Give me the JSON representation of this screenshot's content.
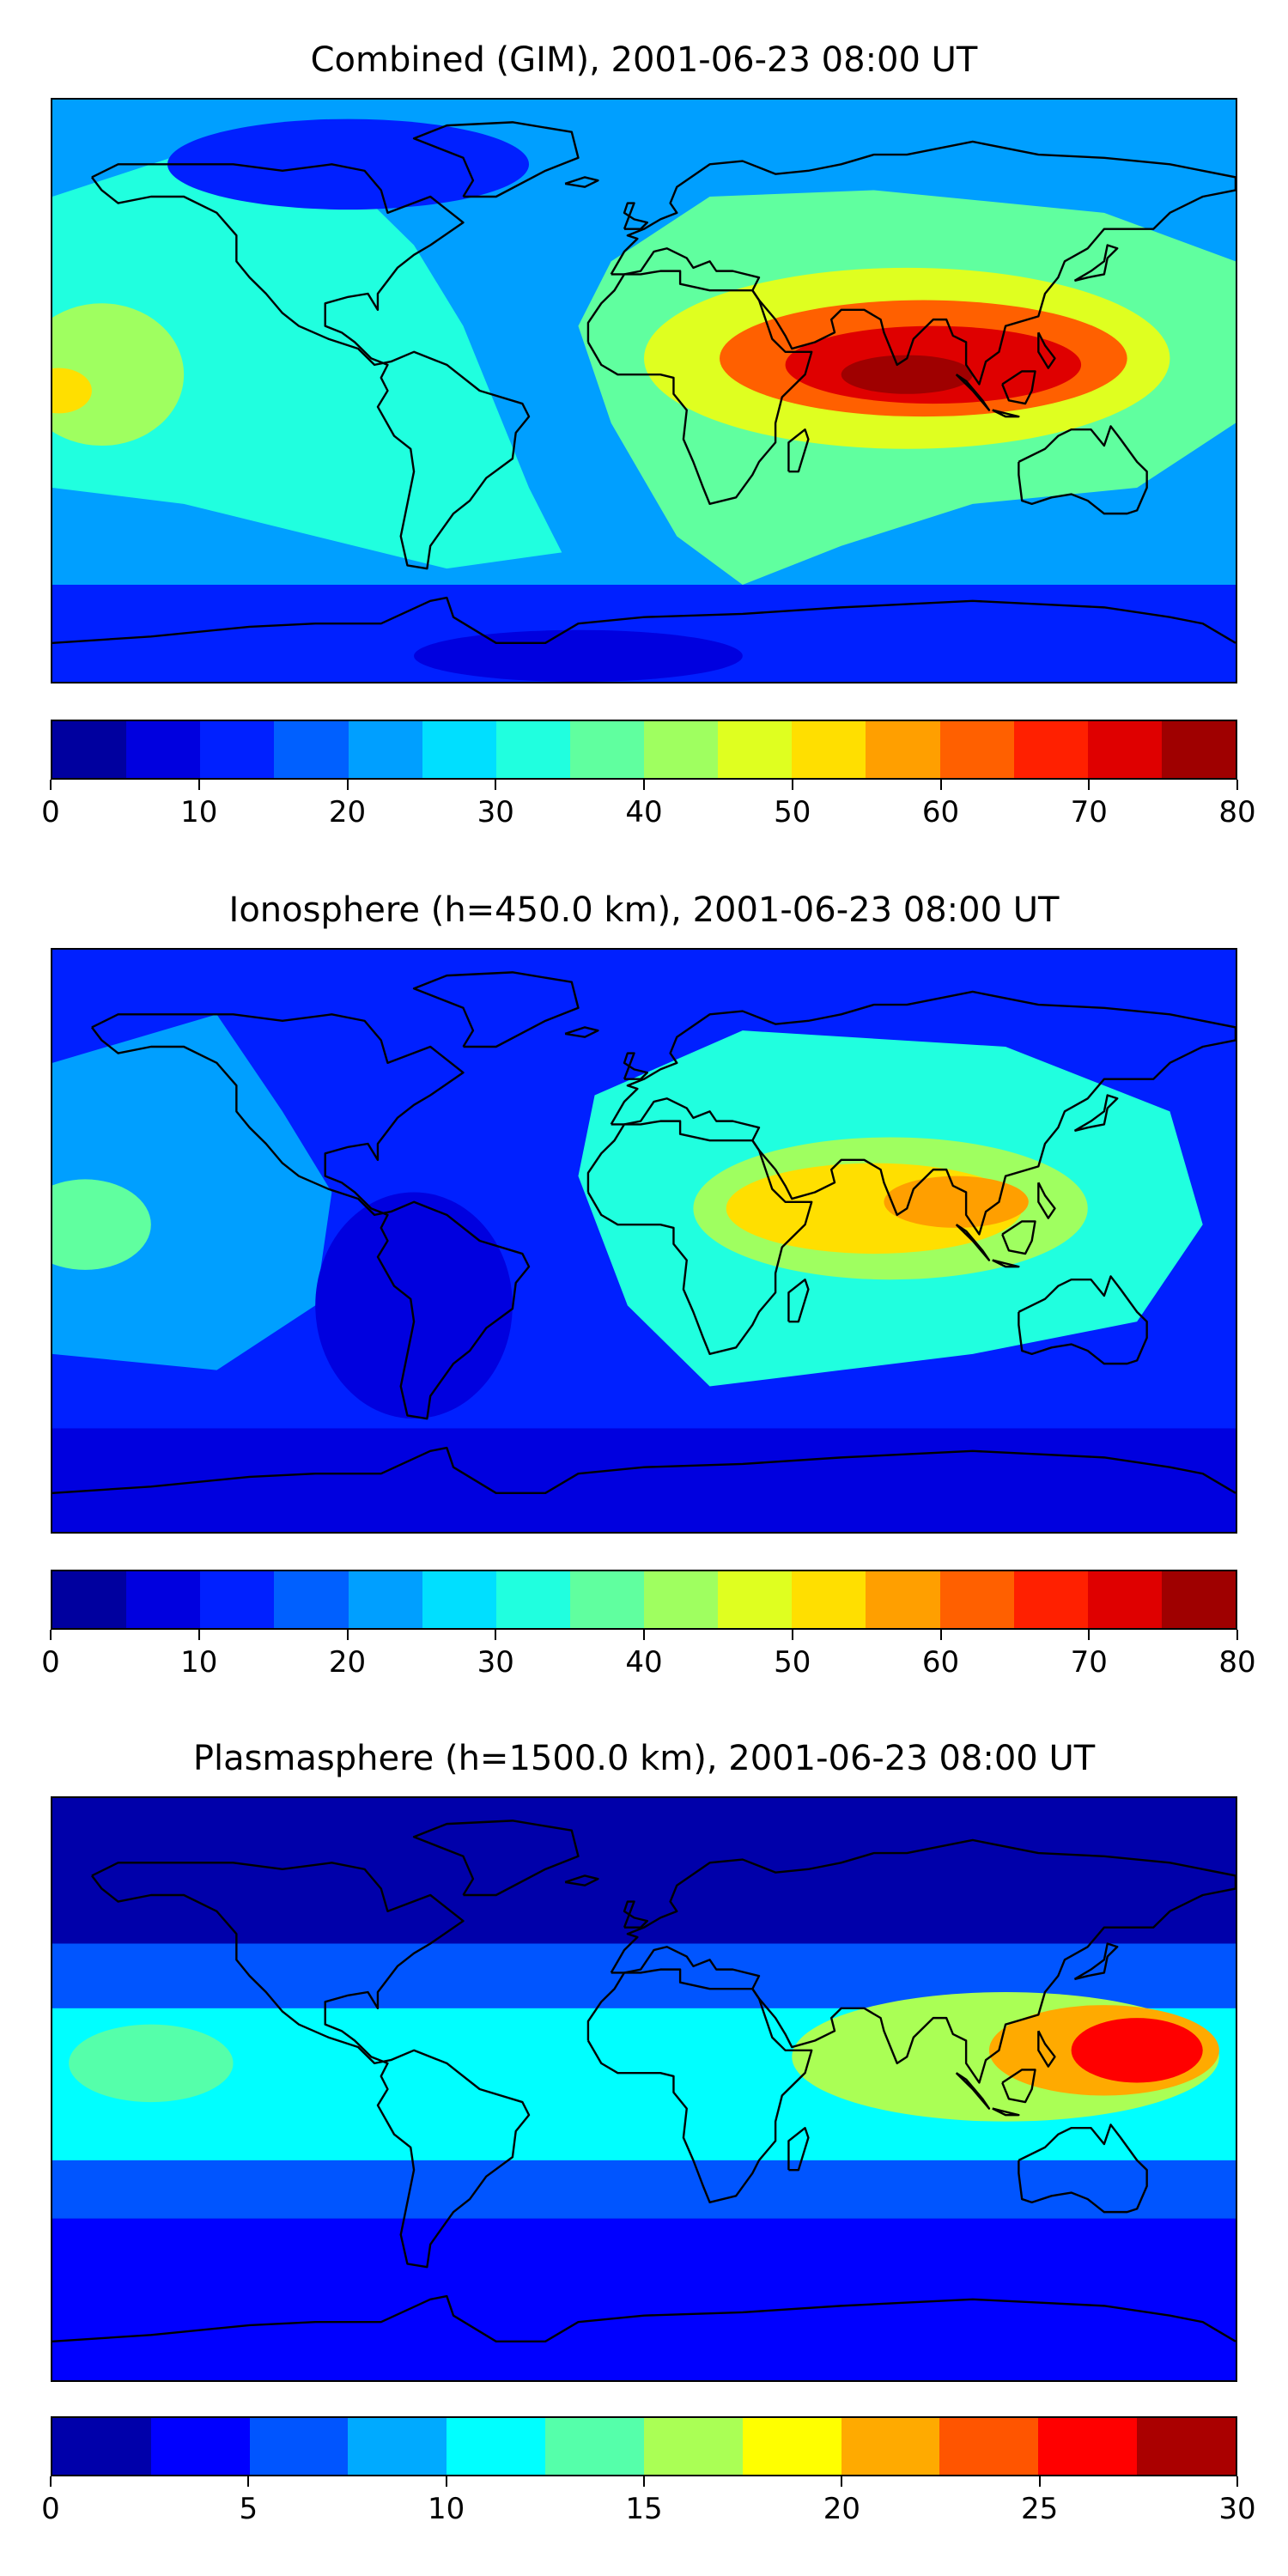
{
  "chart_data": [
    {
      "type": "heatmap",
      "title": "Combined (GIM), 2001-06-23 08:00 UT",
      "projection": "plate carree world map with coastlines",
      "xlim": [
        -180,
        180
      ],
      "ylim": [
        -90,
        90
      ],
      "colorbar": {
        "levels": [
          0,
          5,
          10,
          15,
          20,
          25,
          30,
          35,
          40,
          45,
          50,
          55,
          60,
          65,
          70,
          75,
          80
        ],
        "ticks": [
          0,
          10,
          20,
          30,
          40,
          50,
          60,
          70,
          80
        ],
        "colormap": "jet"
      },
      "regions": [
        {
          "name": "background",
          "value": 22
        },
        {
          "name": "pacific-east-arc",
          "value": 32
        },
        {
          "name": "far-west-pacific",
          "value": 40
        },
        {
          "name": "far-west-pacific-peak",
          "value": 52
        },
        {
          "name": "africa-indian-band",
          "value": 37
        },
        {
          "name": "africa-asia-crest",
          "value": 47
        },
        {
          "name": "arabia-india-maximum",
          "value": 62
        },
        {
          "name": "india-southeast-asia-core",
          "value": 72
        },
        {
          "name": "bay-of-bengal-peak",
          "value": 77
        },
        {
          "name": "north-america-low",
          "value": 14
        },
        {
          "name": "southern-ocean-low",
          "value": 12
        },
        {
          "name": "antarctic-low",
          "value": 7
        }
      ]
    },
    {
      "type": "heatmap",
      "title": "Ionosphere  (h=450.0 km), 2001-06-23 08:00 UT",
      "projection": "plate carree world map with coastlines",
      "xlim": [
        -180,
        180
      ],
      "ylim": [
        -90,
        90
      ],
      "colorbar": {
        "levels": [
          0,
          5,
          10,
          15,
          20,
          25,
          30,
          35,
          40,
          45,
          50,
          55,
          60,
          65,
          70,
          75,
          80
        ],
        "ticks": [
          0,
          10,
          20,
          30,
          40,
          50,
          60,
          70,
          80
        ],
        "colormap": "jet"
      },
      "regions": [
        {
          "name": "background",
          "value": 13
        },
        {
          "name": "pacific-mid",
          "value": 23
        },
        {
          "name": "far-west-pacific",
          "value": 37
        },
        {
          "name": "africa-eurasia-band",
          "value": 32
        },
        {
          "name": "africa-asia-crest",
          "value": 42
        },
        {
          "name": "arabia-india-maximum",
          "value": 52
        },
        {
          "name": "india-southeast-asia-core",
          "value": 57
        },
        {
          "name": "south-america-low",
          "value": 7
        },
        {
          "name": "southern-ocean-low",
          "value": 7
        }
      ]
    },
    {
      "type": "heatmap",
      "title": "Plasmasphere (h=1500.0 km), 2001-06-23 08:00 UT",
      "projection": "plate carree world map with coastlines",
      "xlim": [
        -180,
        180
      ],
      "ylim": [
        -90,
        90
      ],
      "colorbar": {
        "levels": [
          0,
          2.5,
          5,
          7.5,
          10,
          12.5,
          15,
          17.5,
          20,
          22.5,
          25,
          27.5,
          30
        ],
        "ticks": [
          0,
          5,
          10,
          15,
          20,
          25,
          30
        ],
        "colormap": "jet"
      },
      "regions": [
        {
          "name": "polar-low-north",
          "value": 1
        },
        {
          "name": "southern-low",
          "value": 4
        },
        {
          "name": "mid-latitude-band",
          "value": 7
        },
        {
          "name": "tropical-band",
          "value": 11
        },
        {
          "name": "pacific-tropical",
          "value": 14
        },
        {
          "name": "asia-crest",
          "value": 17
        },
        {
          "name": "asia-crest-inner",
          "value": 21
        },
        {
          "name": "west-pacific-peak",
          "value": 25
        },
        {
          "name": "west-pacific-core",
          "value": 27
        }
      ]
    }
  ]
}
